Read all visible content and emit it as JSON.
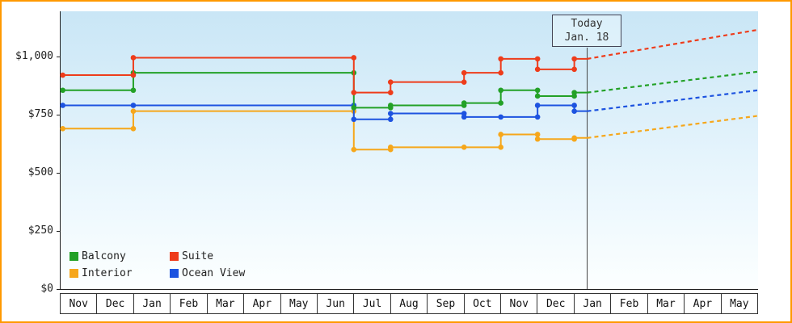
{
  "colors": {
    "frame": "#ff9900",
    "axis": "#222222",
    "today_line": "#444444",
    "plot_gradient_top": "#c9e6f6",
    "plot_gradient_bottom": "#fcffff"
  },
  "chart_data": {
    "type": "line",
    "title": "",
    "style": "step-line price history with dashed future projection",
    "x_axis": {
      "months": [
        "Nov",
        "Dec",
        "Jan",
        "Feb",
        "Mar",
        "Apr",
        "May",
        "Jun",
        "Jul",
        "Aug",
        "Sep",
        "Oct",
        "Nov",
        "Dec",
        "Jan",
        "Feb",
        "Mar",
        "Apr",
        "May"
      ]
    },
    "y_axis": {
      "ticks": [
        {
          "label": "$1,000",
          "value": 1000
        },
        {
          "label": "$750",
          "value": 750
        },
        {
          "label": "$500",
          "value": 500
        },
        {
          "label": "$250",
          "value": 250
        },
        {
          "label": "$0",
          "value": 0
        }
      ],
      "ylim": [
        0,
        1190
      ]
    },
    "today": {
      "line1": "Today",
      "line2": "Jan. 18",
      "month_index": 14.35
    },
    "legend": [
      {
        "label": "Balcony",
        "color": "#23a127"
      },
      {
        "label": "Suite",
        "color": "#ee3c1b"
      },
      {
        "label": "Interior",
        "color": "#f6a71b"
      },
      {
        "label": "Ocean View",
        "color": "#1d53e0"
      }
    ],
    "series": [
      {
        "name": "Interior",
        "color": "#f6a71b",
        "points": [
          [
            0.08,
            690
          ],
          [
            2,
            690
          ],
          [
            2,
            765
          ],
          [
            8,
            765
          ],
          [
            8,
            600
          ],
          [
            9,
            600
          ],
          [
            9,
            610
          ],
          [
            11,
            610
          ],
          [
            12,
            610
          ],
          [
            12,
            665
          ],
          [
            13,
            665
          ],
          [
            13,
            645
          ],
          [
            14,
            645
          ],
          [
            14,
            650
          ],
          [
            14.35,
            650
          ]
        ],
        "projection": [
          [
            14.35,
            650
          ],
          [
            19,
            745
          ]
        ]
      },
      {
        "name": "Ocean View",
        "color": "#1d53e0",
        "points": [
          [
            0.08,
            790
          ],
          [
            2,
            790
          ],
          [
            8,
            790
          ],
          [
            8,
            730
          ],
          [
            9,
            730
          ],
          [
            9,
            755
          ],
          [
            11,
            755
          ],
          [
            11,
            740
          ],
          [
            12,
            740
          ],
          [
            13,
            740
          ],
          [
            13,
            790
          ],
          [
            14,
            790
          ],
          [
            14,
            765
          ],
          [
            14.35,
            765
          ]
        ],
        "projection": [
          [
            14.35,
            765
          ],
          [
            19,
            855
          ]
        ]
      },
      {
        "name": "Balcony",
        "color": "#23a127",
        "points": [
          [
            0.08,
            855
          ],
          [
            2,
            855
          ],
          [
            2,
            930
          ],
          [
            8,
            930
          ],
          [
            8,
            780
          ],
          [
            9,
            780
          ],
          [
            9,
            790
          ],
          [
            11,
            790
          ],
          [
            11,
            800
          ],
          [
            12,
            800
          ],
          [
            12,
            855
          ],
          [
            13,
            855
          ],
          [
            13,
            830
          ],
          [
            14,
            830
          ],
          [
            14,
            845
          ],
          [
            14.35,
            845
          ]
        ],
        "projection": [
          [
            14.35,
            845
          ],
          [
            19,
            935
          ]
        ]
      },
      {
        "name": "Suite",
        "color": "#ee3c1b",
        "points": [
          [
            0.08,
            920
          ],
          [
            2,
            920
          ],
          [
            2,
            995
          ],
          [
            8,
            995
          ],
          [
            8,
            845
          ],
          [
            9,
            845
          ],
          [
            9,
            890
          ],
          [
            11,
            890
          ],
          [
            11,
            930
          ],
          [
            12,
            930
          ],
          [
            12,
            990
          ],
          [
            13,
            990
          ],
          [
            13,
            945
          ],
          [
            14,
            945
          ],
          [
            14,
            990
          ],
          [
            14.35,
            990
          ]
        ],
        "projection": [
          [
            14.35,
            990
          ],
          [
            19,
            1115
          ]
        ]
      }
    ]
  }
}
